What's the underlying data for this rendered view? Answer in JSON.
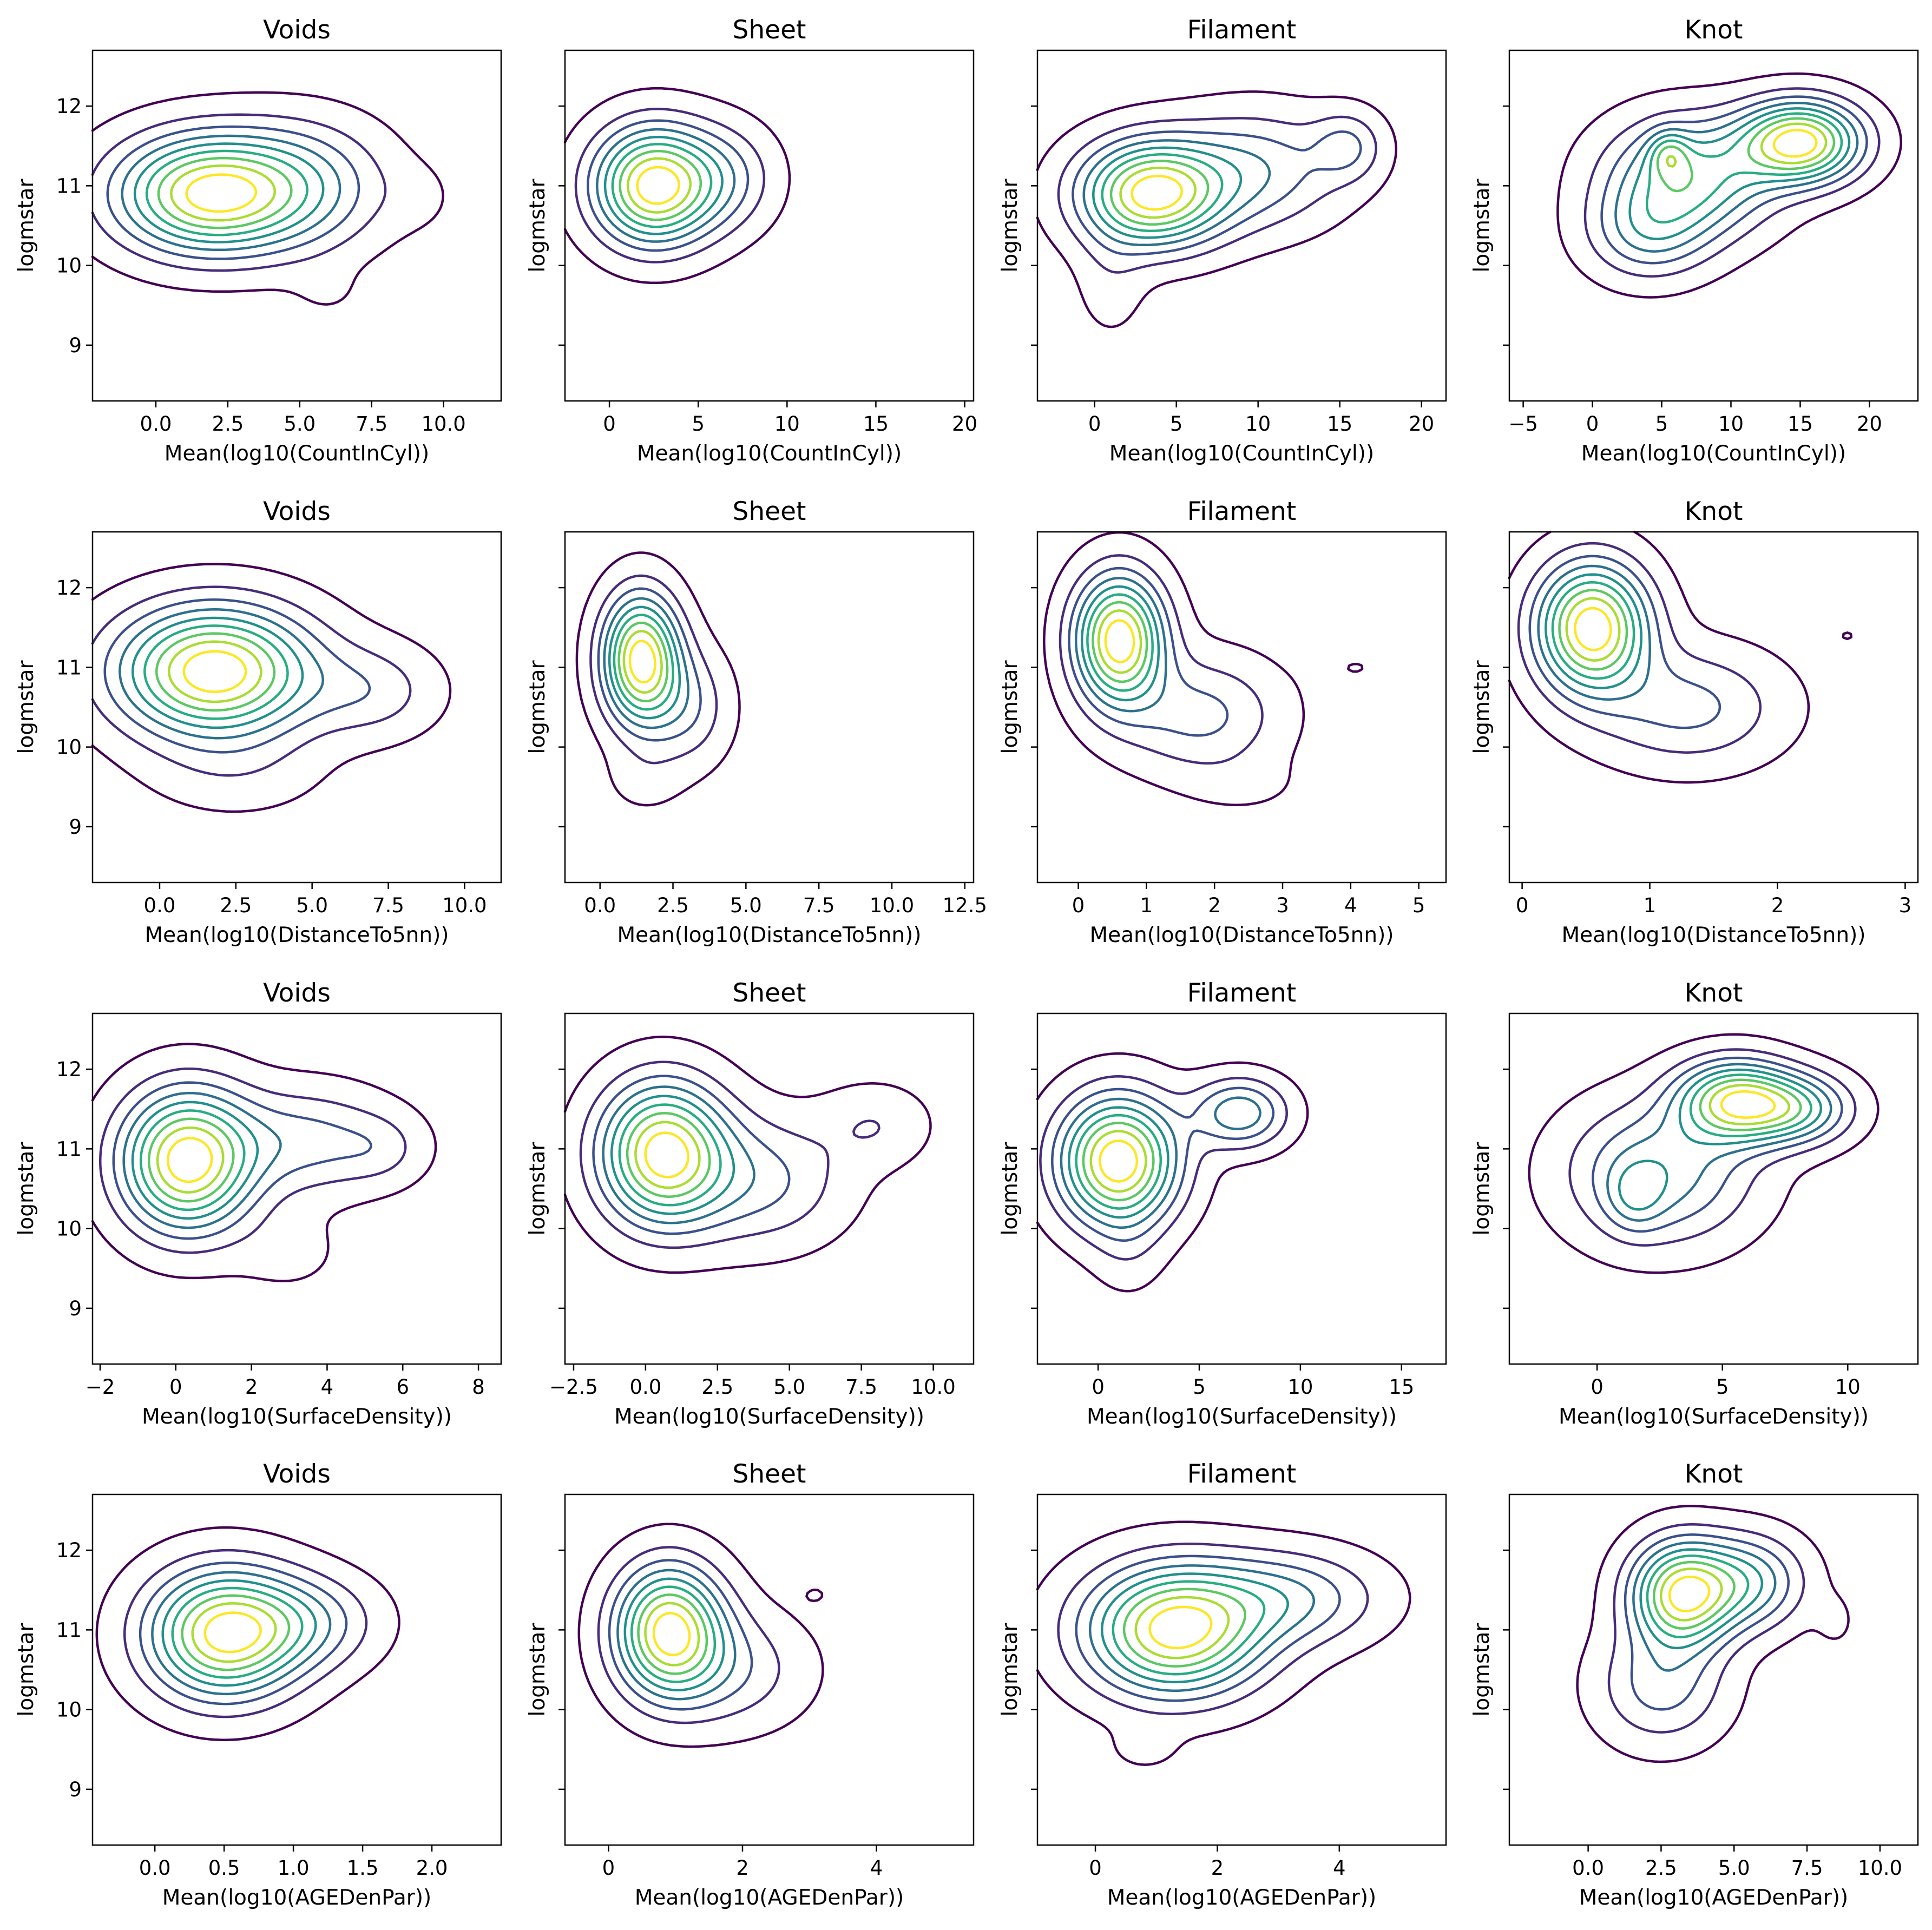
{
  "chart_data": [
    {
      "type": "kde_contour",
      "title": "Voids",
      "xlabel": "Mean(log10(CountInCyl))",
      "ylabel": "logmstar",
      "xlim": [
        -2.2,
        12.0
      ],
      "ylim": [
        8.3,
        12.7
      ],
      "xticks": [
        "0.0",
        "2.5",
        "5.0",
        "7.5",
        "10.0"
      ],
      "yticks": [
        "9",
        "10",
        "11",
        "12"
      ],
      "show_yticklabels": true,
      "n_levels": 9,
      "peaks": [
        {
          "x": 1.8,
          "y": 10.9,
          "sx": 2.2,
          "sy": 0.5,
          "rot": 0.05,
          "amp": 1.0
        },
        {
          "x": 5.2,
          "y": 11.0,
          "sx": 2.0,
          "sy": 0.55,
          "rot": 0.0,
          "amp": 0.35
        },
        {
          "x": 9.2,
          "y": 10.85,
          "sx": 0.9,
          "sy": 0.3,
          "rot": 0.0,
          "amp": 0.05
        },
        {
          "x": 6.0,
          "y": 9.65,
          "sx": 0.9,
          "sy": 0.25,
          "rot": 0.0,
          "amp": 0.05
        }
      ]
    },
    {
      "type": "kde_contour",
      "title": "Sheet",
      "xlabel": "Mean(log10(CountInCyl))",
      "ylabel": "logmstar",
      "xlim": [
        -2.5,
        20.5
      ],
      "ylim": [
        8.3,
        12.7
      ],
      "xticks": [
        "0",
        "5",
        "10",
        "15",
        "20"
      ],
      "yticks": [
        "9",
        "10",
        "11",
        "12"
      ],
      "show_yticklabels": false,
      "n_levels": 9,
      "peaks": [
        {
          "x": 2.5,
          "y": 11.0,
          "sx": 2.3,
          "sy": 0.5,
          "rot": 0.0,
          "amp": 1.0
        },
        {
          "x": 6.5,
          "y": 11.1,
          "sx": 2.0,
          "sy": 0.45,
          "rot": 0.0,
          "amp": 0.25
        },
        {
          "x": 16.0,
          "y": 11.7,
          "sx": 1.0,
          "sy": 0.3,
          "rot": 0.3,
          "amp": 0.05
        }
      ]
    },
    {
      "type": "kde_contour",
      "title": "Filament",
      "xlabel": "Mean(log10(CountInCyl))",
      "ylabel": "logmstar",
      "xlim": [
        -3.5,
        21.5
      ],
      "ylim": [
        8.3,
        12.7
      ],
      "xticks": [
        "0",
        "5",
        "10",
        "15",
        "20"
      ],
      "yticks": [
        "9",
        "10",
        "11",
        "12"
      ],
      "show_yticklabels": false,
      "n_levels": 9,
      "peaks": [
        {
          "x": 3.5,
          "y": 10.9,
          "sx": 3.0,
          "sy": 0.45,
          "rot": 0.1,
          "amp": 1.0
        },
        {
          "x": 10.0,
          "y": 11.2,
          "sx": 3.5,
          "sy": 0.5,
          "rot": 0.08,
          "amp": 0.35
        },
        {
          "x": 15.5,
          "y": 11.5,
          "sx": 1.5,
          "sy": 0.3,
          "rot": 0.0,
          "amp": 0.25
        },
        {
          "x": 1.0,
          "y": 9.8,
          "sx": 1.5,
          "sy": 0.5,
          "rot": 0.0,
          "amp": 0.1
        }
      ]
    },
    {
      "type": "kde_contour",
      "title": "Knot",
      "xlabel": "Mean(log10(CountInCyl))",
      "ylabel": "logmstar",
      "xlim": [
        -6.0,
        23.5
      ],
      "ylim": [
        8.3,
        12.7
      ],
      "xticks": [
        "−5",
        "0",
        "5",
        "10",
        "15",
        "20"
      ],
      "yticks": [
        "9",
        "10",
        "11",
        "12"
      ],
      "show_yticklabels": false,
      "n_levels": 9,
      "peaks": [
        {
          "x": 15.0,
          "y": 11.55,
          "sx": 3.0,
          "sy": 0.35,
          "rot": 0.05,
          "amp": 1.0
        },
        {
          "x": 7.0,
          "y": 11.1,
          "sx": 4.0,
          "sy": 0.5,
          "rot": 0.08,
          "amp": 0.65
        },
        {
          "x": 4.0,
          "y": 10.4,
          "sx": 3.0,
          "sy": 0.4,
          "rot": 0.0,
          "amp": 0.35
        },
        {
          "x": 5.5,
          "y": 11.4,
          "sx": 1.0,
          "sy": 0.2,
          "rot": 0.0,
          "amp": 0.3
        }
      ]
    },
    {
      "type": "kde_contour",
      "title": "Voids",
      "xlabel": "Mean(log10(DistanceTo5nn))",
      "ylabel": "logmstar",
      "xlim": [
        -2.2,
        11.2
      ],
      "ylim": [
        8.3,
        12.7
      ],
      "xticks": [
        "0.0",
        "2.5",
        "5.0",
        "7.5",
        "10.0"
      ],
      "yticks": [
        "9",
        "10",
        "11",
        "12"
      ],
      "show_yticklabels": true,
      "n_levels": 9,
      "peaks": [
        {
          "x": 1.8,
          "y": 10.95,
          "sx": 2.2,
          "sy": 0.55,
          "rot": 0.0,
          "amp": 1.0
        },
        {
          "x": 7.0,
          "y": 10.7,
          "sx": 1.5,
          "sy": 0.4,
          "rot": 0.0,
          "amp": 0.2
        },
        {
          "x": 2.5,
          "y": 9.7,
          "sx": 2.0,
          "sy": 0.4,
          "rot": 0.0,
          "amp": 0.1
        }
      ]
    },
    {
      "type": "kde_contour",
      "title": "Sheet",
      "xlabel": "Mean(log10(DistanceTo5nn))",
      "ylabel": "logmstar",
      "xlim": [
        -1.2,
        12.8
      ],
      "ylim": [
        8.3,
        12.7
      ],
      "xticks": [
        "0.0",
        "2.5",
        "5.0",
        "7.5",
        "10.0",
        "12.5"
      ],
      "yticks": [
        "9",
        "10",
        "11",
        "12"
      ],
      "show_yticklabels": false,
      "n_levels": 9,
      "peaks": [
        {
          "x": 1.4,
          "y": 11.1,
          "sx": 0.9,
          "sy": 0.55,
          "rot": -0.1,
          "amp": 1.0
        },
        {
          "x": 3.0,
          "y": 10.5,
          "sx": 1.0,
          "sy": 0.5,
          "rot": 0.0,
          "amp": 0.25
        },
        {
          "x": 1.5,
          "y": 9.6,
          "sx": 0.9,
          "sy": 0.3,
          "rot": 0.0,
          "amp": 0.08
        }
      ]
    },
    {
      "type": "kde_contour",
      "title": "Filament",
      "xlabel": "Mean(log10(DistanceTo5nn))",
      "ylabel": "logmstar",
      "xlim": [
        -0.6,
        5.4
      ],
      "ylim": [
        8.3,
        12.7
      ],
      "xticks": [
        "0",
        "1",
        "2",
        "3",
        "4",
        "5"
      ],
      "yticks": [
        "9",
        "10",
        "11",
        "12"
      ],
      "show_yticklabels": false,
      "n_levels": 9,
      "peaks": [
        {
          "x": 0.6,
          "y": 11.35,
          "sx": 0.45,
          "sy": 0.55,
          "rot": -0.1,
          "amp": 1.0
        },
        {
          "x": 1.8,
          "y": 10.4,
          "sx": 0.8,
          "sy": 0.5,
          "rot": 0.0,
          "amp": 0.3
        },
        {
          "x": 4.1,
          "y": 11.0,
          "sx": 0.4,
          "sy": 0.2,
          "rot": 0.0,
          "amp": 0.05
        },
        {
          "x": 2.5,
          "y": 9.5,
          "sx": 0.6,
          "sy": 0.25,
          "rot": 0.0,
          "amp": 0.05
        }
      ]
    },
    {
      "type": "kde_contour",
      "title": "Knot",
      "xlabel": "Mean(log10(DistanceTo5nn))",
      "ylabel": "logmstar",
      "xlim": [
        -0.1,
        3.1
      ],
      "ylim": [
        8.3,
        12.7
      ],
      "xticks": [
        "0",
        "1",
        "2",
        "3"
      ],
      "yticks": [
        "9",
        "10",
        "11",
        "12"
      ],
      "show_yticklabels": false,
      "n_levels": 9,
      "peaks": [
        {
          "x": 0.55,
          "y": 11.5,
          "sx": 0.3,
          "sy": 0.55,
          "rot": 0.0,
          "amp": 1.0
        },
        {
          "x": 1.3,
          "y": 10.5,
          "sx": 0.5,
          "sy": 0.5,
          "rot": 0.0,
          "amp": 0.3
        },
        {
          "x": 2.55,
          "y": 11.4,
          "sx": 0.12,
          "sy": 0.15,
          "rot": 0.0,
          "amp": 0.05
        }
      ]
    },
    {
      "type": "kde_contour",
      "title": "Voids",
      "xlabel": "Mean(log10(SurfaceDensity))",
      "ylabel": "logmstar",
      "xlim": [
        -2.2,
        8.6
      ],
      "ylim": [
        8.3,
        12.7
      ],
      "xticks": [
        "−2",
        "0",
        "2",
        "4",
        "6",
        "8"
      ],
      "yticks": [
        "9",
        "10",
        "11",
        "12"
      ],
      "show_yticklabels": true,
      "n_levels": 9,
      "peaks": [
        {
          "x": 0.3,
          "y": 10.85,
          "sx": 1.2,
          "sy": 0.6,
          "rot": 0.0,
          "amp": 1.0
        },
        {
          "x": 3.5,
          "y": 11.1,
          "sx": 1.5,
          "sy": 0.45,
          "rot": 0.0,
          "amp": 0.3
        },
        {
          "x": 5.5,
          "y": 11.0,
          "sx": 0.8,
          "sy": 0.3,
          "rot": 0.0,
          "amp": 0.12
        },
        {
          "x": 3.0,
          "y": 9.7,
          "sx": 1.0,
          "sy": 0.35,
          "rot": 0.0,
          "amp": 0.08
        }
      ]
    },
    {
      "type": "kde_contour",
      "title": "Sheet",
      "xlabel": "Mean(log10(SurfaceDensity))",
      "ylabel": "logmstar",
      "xlim": [
        -2.8,
        11.4
      ],
      "ylim": [
        8.3,
        12.7
      ],
      "xticks": [
        "−2.5",
        "0.0",
        "2.5",
        "5.0",
        "7.5",
        "10.0"
      ],
      "yticks": [
        "9",
        "10",
        "11",
        "12"
      ],
      "show_yticklabels": false,
      "n_levels": 9,
      "peaks": [
        {
          "x": 0.6,
          "y": 10.95,
          "sx": 1.5,
          "sy": 0.6,
          "rot": 0.0,
          "amp": 1.0
        },
        {
          "x": 4.0,
          "y": 10.6,
          "sx": 2.0,
          "sy": 0.55,
          "rot": 0.0,
          "amp": 0.3
        },
        {
          "x": 8.0,
          "y": 11.3,
          "sx": 1.3,
          "sy": 0.35,
          "rot": 0.0,
          "amp": 0.15
        }
      ]
    },
    {
      "type": "kde_contour",
      "title": "Filament",
      "xlabel": "Mean(log10(SurfaceDensity))",
      "ylabel": "logmstar",
      "xlim": [
        -3.0,
        17.2
      ],
      "ylim": [
        8.3,
        12.7
      ],
      "xticks": [
        "0",
        "5",
        "10",
        "15"
      ],
      "yticks": [
        "9",
        "10",
        "11",
        "12"
      ],
      "show_yticklabels": false,
      "n_levels": 9,
      "peaks": [
        {
          "x": 1.0,
          "y": 10.85,
          "sx": 2.0,
          "sy": 0.55,
          "rot": 0.1,
          "amp": 1.0
        },
        {
          "x": 7.0,
          "y": 11.45,
          "sx": 1.6,
          "sy": 0.3,
          "rot": 0.0,
          "amp": 0.45
        },
        {
          "x": 1.5,
          "y": 9.7,
          "sx": 1.2,
          "sy": 0.4,
          "rot": 0.0,
          "amp": 0.08
        }
      ]
    },
    {
      "type": "kde_contour",
      "title": "Knot",
      "xlabel": "Mean(log10(SurfaceDensity))",
      "ylabel": "logmstar",
      "xlim": [
        -3.5,
        12.8
      ],
      "ylim": [
        8.3,
        12.7
      ],
      "xticks": [
        "0",
        "5",
        "10"
      ],
      "yticks": [
        "9",
        "10",
        "11",
        "12"
      ],
      "show_yticklabels": false,
      "n_levels": 9,
      "peaks": [
        {
          "x": 5.5,
          "y": 11.6,
          "sx": 1.6,
          "sy": 0.35,
          "rot": 0.0,
          "amp": 1.0
        },
        {
          "x": 8.0,
          "y": 11.5,
          "sx": 1.5,
          "sy": 0.3,
          "rot": 0.0,
          "amp": 0.6
        },
        {
          "x": 2.5,
          "y": 10.7,
          "sx": 2.5,
          "sy": 0.6,
          "rot": 0.0,
          "amp": 0.55
        },
        {
          "x": 1.5,
          "y": 10.4,
          "sx": 0.8,
          "sy": 0.3,
          "rot": 0.0,
          "amp": 0.25
        }
      ]
    },
    {
      "type": "kde_contour",
      "title": "Voids",
      "xlabel": "Mean(log10(AGEDenPar))",
      "ylabel": "logmstar",
      "xlim": [
        -0.45,
        2.5
      ],
      "ylim": [
        8.3,
        12.7
      ],
      "xticks": [
        "0.0",
        "0.5",
        "1.0",
        "1.5",
        "2.0"
      ],
      "yticks": [
        "9",
        "10",
        "11",
        "12"
      ],
      "show_yticklabels": true,
      "n_levels": 9,
      "peaks": [
        {
          "x": 0.5,
          "y": 10.95,
          "sx": 0.38,
          "sy": 0.55,
          "rot": 0.1,
          "amp": 1.0
        },
        {
          "x": 1.1,
          "y": 11.1,
          "sx": 0.35,
          "sy": 0.4,
          "rot": 0.0,
          "amp": 0.3
        },
        {
          "x": 1.98,
          "y": 10.6,
          "sx": 0.06,
          "sy": 0.1,
          "rot": 0.0,
          "amp": 0.04
        },
        {
          "x": 1.52,
          "y": 9.45,
          "sx": 0.05,
          "sy": 0.08,
          "rot": 0.0,
          "amp": 0.04
        }
      ]
    },
    {
      "type": "kde_contour",
      "title": "Sheet",
      "xlabel": "Mean(log10(AGEDenPar))",
      "ylabel": "logmstar",
      "xlim": [
        -0.65,
        5.45
      ],
      "ylim": [
        8.3,
        12.7
      ],
      "xticks": [
        "0",
        "2",
        "4"
      ],
      "yticks": [
        "9",
        "10",
        "11",
        "12"
      ],
      "show_yticklabels": false,
      "n_levels": 9,
      "peaks": [
        {
          "x": 0.9,
          "y": 11.0,
          "sx": 0.55,
          "sy": 0.55,
          "rot": 0.0,
          "amp": 1.0
        },
        {
          "x": 1.8,
          "y": 10.5,
          "sx": 0.8,
          "sy": 0.5,
          "rot": 0.0,
          "amp": 0.25
        },
        {
          "x": 3.1,
          "y": 11.45,
          "sx": 0.2,
          "sy": 0.12,
          "rot": 0.0,
          "amp": 0.05
        },
        {
          "x": 4.75,
          "y": 11.9,
          "sx": 0.1,
          "sy": 0.1,
          "rot": 0.0,
          "amp": 0.04
        }
      ]
    },
    {
      "type": "kde_contour",
      "title": "Filament",
      "xlabel": "Mean(log10(AGEDenPar))",
      "ylabel": "logmstar",
      "xlim": [
        -0.95,
        5.75
      ],
      "ylim": [
        8.3,
        12.7
      ],
      "xticks": [
        "0",
        "2",
        "4"
      ],
      "yticks": [
        "9",
        "10",
        "11",
        "12"
      ],
      "show_yticklabels": false,
      "n_levels": 9,
      "peaks": [
        {
          "x": 1.3,
          "y": 11.0,
          "sx": 1.0,
          "sy": 0.55,
          "rot": 0.1,
          "amp": 1.0
        },
        {
          "x": 3.2,
          "y": 11.4,
          "sx": 1.0,
          "sy": 0.4,
          "rot": 0.05,
          "amp": 0.35
        },
        {
          "x": 0.8,
          "y": 9.5,
          "sx": 0.4,
          "sy": 0.2,
          "rot": 0.0,
          "amp": 0.07
        }
      ]
    },
    {
      "type": "kde_contour",
      "title": "Knot",
      "xlabel": "Mean(log10(AGEDenPar))",
      "ylabel": "logmstar",
      "xlim": [
        -2.7,
        11.3
      ],
      "ylim": [
        8.3,
        12.7
      ],
      "xticks": [
        "0.0",
        "2.5",
        "5.0",
        "7.5",
        "10.0"
      ],
      "yticks": [
        "9",
        "10",
        "11",
        "12"
      ],
      "show_yticklabels": false,
      "n_levels": 9,
      "peaks": [
        {
          "x": 3.2,
          "y": 11.45,
          "sx": 1.2,
          "sy": 0.45,
          "rot": 0.05,
          "amp": 1.0
        },
        {
          "x": 5.5,
          "y": 11.6,
          "sx": 1.3,
          "sy": 0.4,
          "rot": 0.0,
          "amp": 0.5
        },
        {
          "x": 2.5,
          "y": 10.3,
          "sx": 1.5,
          "sy": 0.5,
          "rot": 0.0,
          "amp": 0.35
        },
        {
          "x": 9.1,
          "y": 10.3,
          "sx": 0.35,
          "sy": 0.15,
          "rot": 0.0,
          "amp": 0.05
        },
        {
          "x": 8.5,
          "y": 11.1,
          "sx": 0.5,
          "sy": 0.25,
          "rot": 0.0,
          "amp": 0.07
        }
      ]
    }
  ],
  "colors": {
    "levels": [
      "#440154",
      "#472c7a",
      "#3b518b",
      "#2c718e",
      "#21908d",
      "#27ad81",
      "#5cc863",
      "#aadc32",
      "#fde725"
    ],
    "axis": "#000000",
    "background": "#ffffff"
  }
}
